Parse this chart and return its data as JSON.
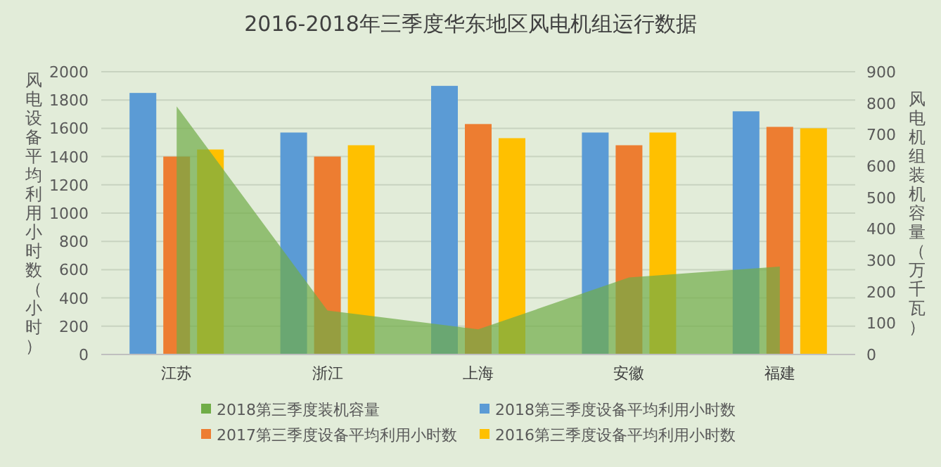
{
  "chart_data": {
    "type": "bar",
    "title": "2016-2018年三季度华东地区风电机组运行数据",
    "ylabel": "风电设备平均利用小时数（小时）",
    "y2label": "风电机组装机容量（万千瓦）",
    "categories": [
      "江苏",
      "浙江",
      "上海",
      "安徽",
      "福建"
    ],
    "series": [
      {
        "name": "2018第三季度装机容量",
        "type": "area",
        "axis": "y2",
        "color": "#70ad47",
        "values": [
          790,
          140,
          80,
          245,
          280
        ]
      },
      {
        "name": "2018第三季度设备平均利用小时数",
        "color": "#5b9bd5",
        "values": [
          1850,
          1570,
          1900,
          1570,
          1720
        ]
      },
      {
        "name": "2017第三季度设备平均利用小时数",
        "color": "#ed7d31",
        "values": [
          1400,
          1400,
          1630,
          1480,
          1610
        ]
      },
      {
        "name": "2016第三季度设备平均利用小时数",
        "color": "#ffc000",
        "values": [
          1450,
          1480,
          1530,
          1570,
          1600
        ]
      }
    ],
    "ylim": [
      0,
      2000
    ],
    "yticks": [
      0,
      200,
      400,
      600,
      800,
      1000,
      1200,
      1400,
      1600,
      1800,
      2000
    ],
    "y2lim": [
      0,
      900
    ],
    "y2ticks": [
      0,
      100,
      200,
      300,
      400,
      500,
      600,
      700,
      800,
      900
    ],
    "grid": "y",
    "legend": "bottom"
  }
}
